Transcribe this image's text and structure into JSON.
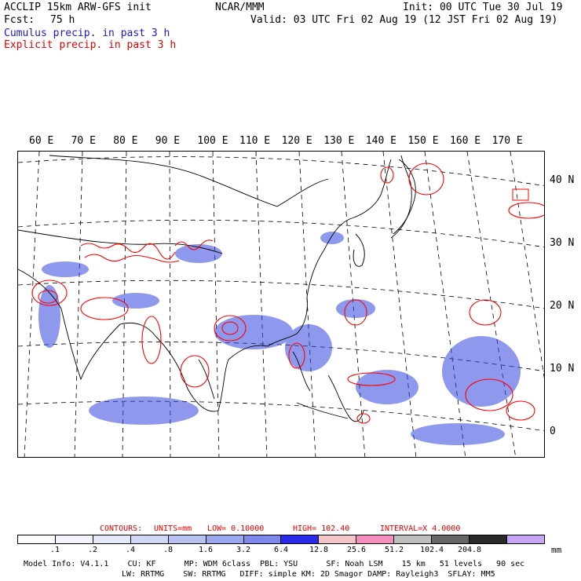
{
  "header": {
    "title_left": "ACCLIP 15km ARW-GFS init",
    "title_center": "NCAR/MMM",
    "init": "Init: 00 UTC Tue 30 Jul 19",
    "fcst_label": "Fcst:",
    "fcst_value": "75 h",
    "valid": "Valid: 03 UTC Fri 02 Aug 19 (12 JST Fri 02 Aug 19)",
    "legend_cumulus": "Cumulus precip. in past 3 h",
    "legend_explicit": "Explicit precip. in past 3 h"
  },
  "map": {
    "longitude_labels": [
      "60 E",
      "70 E",
      "80 E",
      "90 E",
      "100 E",
      "110 E",
      "120 E",
      "130 E",
      "140 E",
      "150 E",
      "160 E",
      "170 E"
    ],
    "latitude_labels": [
      "40 N",
      "30 N",
      "20 N",
      "10 N",
      "0"
    ],
    "colors": {
      "explicit_contour": "#ff0000",
      "cumulus_fill": "#3344dd",
      "land_outline": "#000000"
    }
  },
  "contours": {
    "prefix": "CONTOURS:",
    "units": "UNITS=mm",
    "low": "LOW= 0.10000",
    "high": "HIGH= 102.40",
    "interval": "INTERVAL=X 4.0000"
  },
  "colorbar": {
    "colors": [
      "#ffffff",
      "#f4f4ff",
      "#e6e8fb",
      "#d0d6f6",
      "#b8c2f2",
      "#9ca8ee",
      "#7f88ea",
      "#2a2ae8",
      "#f3c4c8",
      "#f58fbf",
      "#bebebe",
      "#666666",
      "#2a2a2a",
      "#c9a6f5"
    ],
    "labels": [
      ".1",
      ".2",
      ".4",
      ".8",
      "1.6",
      "3.2",
      "6.4",
      "12.8",
      "25.6",
      "51.2",
      "102.4",
      "204.8"
    ],
    "unit": "mm"
  },
  "footer": {
    "line1": "Model Info: V4.1.1    CU: KF      MP: WDM 6class  PBL: YSU      SF: Noah LSM    15 km   51 levels   90 sec",
    "line2": "LW: RRTMG    SW: RRTMG   DIFF: simple KM: 2D Smagor DAMP: Rayleigh3  SFLAY: MM5"
  }
}
